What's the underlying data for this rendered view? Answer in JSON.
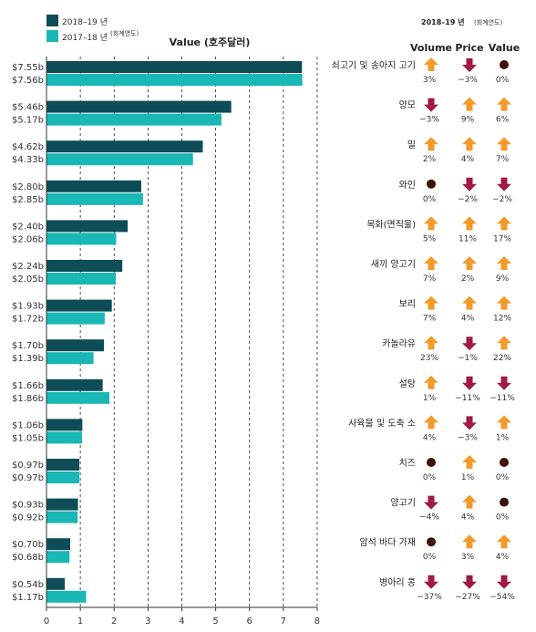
{
  "legend": {
    "current_label": "2018–19 년",
    "previous_label": "2017–18 년",
    "fiscal_note": "(회계연도)"
  },
  "value_title": "Value (호주달러)",
  "right_header": {
    "title": "2018–19 년",
    "fiscal_note": "(회계연도)",
    "col_volume": "Volume",
    "col_price": "Price",
    "col_value": "Value"
  },
  "colors": {
    "current": "#0e4d57",
    "previous": "#19b7b5",
    "up": "#f39a2b",
    "down": "#a01a45",
    "flat": "#3a1208",
    "grid": "#222222"
  },
  "chart_data": {
    "type": "bar",
    "orientation": "horizontal",
    "xlim": [
      0,
      8
    ],
    "xticks": [
      "0",
      "1",
      "2",
      "3",
      "4",
      "5",
      "6",
      "7",
      "8"
    ],
    "grid": "vertical dashed",
    "series": [
      {
        "name": "2018–19 년",
        "values": [
          7.55,
          5.46,
          4.62,
          2.8,
          2.4,
          2.24,
          1.93,
          1.7,
          1.66,
          1.06,
          0.97,
          0.93,
          0.7,
          0.54
        ]
      },
      {
        "name": "2017–18 년",
        "values": [
          7.56,
          5.17,
          4.33,
          2.85,
          2.06,
          2.05,
          1.72,
          1.39,
          1.86,
          1.05,
          0.97,
          0.92,
          0.68,
          1.17
        ]
      }
    ],
    "value_labels_current": [
      "$7.55b",
      "$5.46b",
      "$4.62b",
      "$2.80b",
      "$2.40b",
      "$2.24b",
      "$1.93b",
      "$1.70b",
      "$1.66b",
      "$1.06b",
      "$0.97b",
      "$0.93b",
      "$0.70b",
      "$0.54b"
    ],
    "value_labels_previous": [
      "$7.56b",
      "$5.17b",
      "$4.33b",
      "$2.85b",
      "$2.06b",
      "$2.05b",
      "$1.72b",
      "$1.39b",
      "$1.86b",
      "$1.05b",
      "$0.97b",
      "$0.92b",
      "$0.68b",
      "$1.17b"
    ],
    "categories": [
      "쇠고기 및 송아지 고기",
      "양모",
      "밀",
      "와인",
      "목화(면직물)",
      "새끼 양고기",
      "보리",
      "카놀라유",
      "설탕",
      "사육물 및 도축 소",
      "치즈",
      "양고기",
      "암석 바다 가재",
      "병아리 콩"
    ],
    "changes": [
      {
        "volume": {
          "dir": "up",
          "label": "3%"
        },
        "price": {
          "dir": "down",
          "label": "−3%"
        },
        "value": {
          "dir": "flat",
          "label": "0%"
        }
      },
      {
        "volume": {
          "dir": "down",
          "label": "−3%"
        },
        "price": {
          "dir": "up",
          "label": "9%"
        },
        "value": {
          "dir": "up",
          "label": "6%"
        }
      },
      {
        "volume": {
          "dir": "up",
          "label": "2%"
        },
        "price": {
          "dir": "up",
          "label": "4%"
        },
        "value": {
          "dir": "up",
          "label": "7%"
        }
      },
      {
        "volume": {
          "dir": "flat",
          "label": "0%"
        },
        "price": {
          "dir": "down",
          "label": "−2%"
        },
        "value": {
          "dir": "down",
          "label": "−2%"
        }
      },
      {
        "volume": {
          "dir": "up",
          "label": "5%"
        },
        "price": {
          "dir": "up",
          "label": "11%"
        },
        "value": {
          "dir": "up",
          "label": "17%"
        }
      },
      {
        "volume": {
          "dir": "up",
          "label": "7%"
        },
        "price": {
          "dir": "up",
          "label": "2%"
        },
        "value": {
          "dir": "up",
          "label": "9%"
        }
      },
      {
        "volume": {
          "dir": "up",
          "label": "7%"
        },
        "price": {
          "dir": "up",
          "label": "4%"
        },
        "value": {
          "dir": "up",
          "label": "12%"
        }
      },
      {
        "volume": {
          "dir": "up",
          "label": "23%"
        },
        "price": {
          "dir": "down",
          "label": "−1%"
        },
        "value": {
          "dir": "up",
          "label": "22%"
        }
      },
      {
        "volume": {
          "dir": "up",
          "label": "1%"
        },
        "price": {
          "dir": "down",
          "label": "−11%"
        },
        "value": {
          "dir": "down",
          "label": "−11%"
        }
      },
      {
        "volume": {
          "dir": "up",
          "label": "4%"
        },
        "price": {
          "dir": "down",
          "label": "−3%"
        },
        "value": {
          "dir": "up",
          "label": "1%"
        }
      },
      {
        "volume": {
          "dir": "flat",
          "label": "0%"
        },
        "price": {
          "dir": "up",
          "label": "1%"
        },
        "value": {
          "dir": "flat",
          "label": "0%"
        }
      },
      {
        "volume": {
          "dir": "down",
          "label": "−4%"
        },
        "price": {
          "dir": "up",
          "label": "4%"
        },
        "value": {
          "dir": "flat",
          "label": "0%"
        }
      },
      {
        "volume": {
          "dir": "flat",
          "label": "0%"
        },
        "price": {
          "dir": "up",
          "label": "3%"
        },
        "value": {
          "dir": "up",
          "label": "4%"
        }
      },
      {
        "volume": {
          "dir": "down",
          "label": "−37%"
        },
        "price": {
          "dir": "down",
          "label": "−27%"
        },
        "value": {
          "dir": "down",
          "label": "−54%"
        }
      }
    ]
  }
}
